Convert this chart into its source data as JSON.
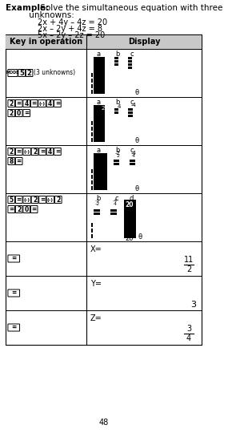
{
  "title_bold": "Example:",
  "title_rest": " Solve the simultaneous equation with three",
  "title_line2": "         unknowns:",
  "equations": [
    "2x + 4y – 4z = 20",
    "2x – 2y + 4z = 8",
    "5x – 2y – 2z = 20"
  ],
  "col_header_left": "Key in operation",
  "col_header_right": "Display",
  "page_number": "48",
  "bg_color": "#ffffff",
  "header_bg": "#c8c8c8"
}
